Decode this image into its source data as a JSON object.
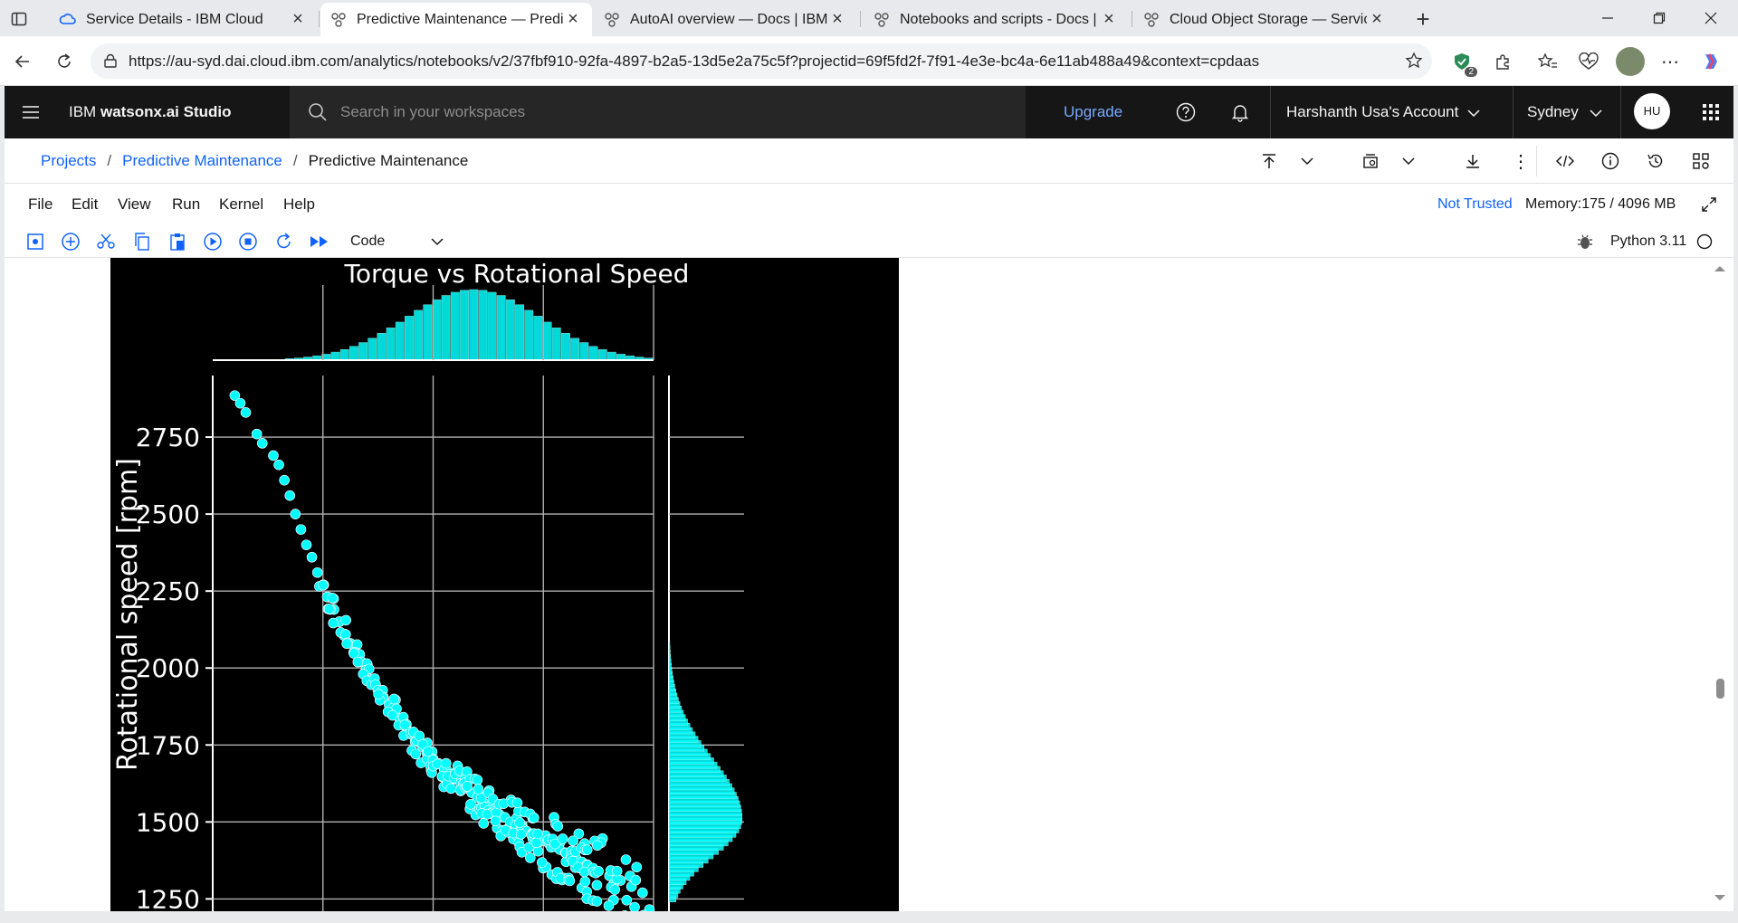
{
  "browser": {
    "tabs": [
      {
        "title": "Service Details - IBM Cloud",
        "active": false,
        "icon": "ibm-cloud-icon"
      },
      {
        "title": "Predictive Maintenance — Predict",
        "active": true,
        "icon": "watsonx-icon"
      },
      {
        "title": "AutoAI overview — Docs | IBM wa",
        "active": false,
        "icon": "watsonx-icon"
      },
      {
        "title": "Notebooks and scripts - Docs | IB",
        "active": false,
        "icon": "watsonx-icon"
      },
      {
        "title": "Cloud Object Storage — Services",
        "active": false,
        "icon": "watsonx-icon"
      }
    ],
    "url": "https://au-syd.dai.cloud.ibm.com/analytics/notebooks/v2/37fbf910-92fa-4897-b2a5-13d5e2a75c5f?projectid=69f5fd2f-7f91-4e3e-bc4a-6e11ab488a49&context=cpdaas",
    "extension_badge": "2"
  },
  "app": {
    "brand_prefix": "IBM",
    "brand_name": "watsonx.ai Studio",
    "search_placeholder": "Search in your workspaces",
    "upgrade_label": "Upgrade",
    "account_label": "Harshanth Usa's Account",
    "region_label": "Sydney",
    "avatar_initials": "HU"
  },
  "breadcrumb": {
    "items": [
      "Projects",
      "Predictive Maintenance"
    ],
    "current": "Predictive Maintenance"
  },
  "notebook": {
    "menu": [
      "File",
      "Edit",
      "View",
      "Run",
      "Kernel",
      "Help"
    ],
    "trust_status": "Not Trusted",
    "memory": "Memory:175 / 4096 MB",
    "cell_type": "Code",
    "kernel": "Python 3.11"
  },
  "chart_data": {
    "type": "scatter",
    "title": "Torque vs Rotational Speed",
    "ylabel": "Rotational speed [rpm]",
    "xlabel": "",
    "yticks": [
      "2750",
      "2500",
      "2250",
      "2000",
      "1750",
      "1500",
      "1250"
    ],
    "ylim": [
      1210,
      2950
    ],
    "xlim": [
      0,
      80
    ],
    "color": "#00ffff",
    "marginal_x": "histogram",
    "marginal_y": "histogram",
    "relationship": "rotational speed decreases as torque increases",
    "points": [
      [
        4,
        2885
      ],
      [
        5,
        2860
      ],
      [
        6,
        2830
      ],
      [
        8,
        2760
      ],
      [
        9,
        2730
      ],
      [
        11,
        2690
      ],
      [
        12,
        2660
      ],
      [
        13,
        2610
      ],
      [
        14,
        2560
      ],
      [
        15,
        2500
      ],
      [
        16,
        2450
      ],
      [
        17,
        2400
      ],
      [
        18,
        2360
      ],
      [
        19,
        2310
      ],
      [
        20,
        2270
      ],
      [
        21,
        2230
      ],
      [
        22,
        2190
      ],
      [
        23,
        2150
      ],
      [
        24,
        2110
      ],
      [
        25,
        2080
      ],
      [
        26,
        2050
      ],
      [
        27,
        2020
      ],
      [
        28,
        1990
      ],
      [
        29,
        1960
      ],
      [
        30,
        1930
      ],
      [
        31,
        1905
      ],
      [
        32,
        1880
      ],
      [
        33,
        1855
      ],
      [
        34,
        1830
      ],
      [
        35,
        1810
      ],
      [
        36,
        1785
      ],
      [
        37,
        1765
      ],
      [
        38,
        1745
      ],
      [
        39,
        1725
      ],
      [
        40,
        1705
      ],
      [
        41,
        1690
      ],
      [
        42,
        1670
      ],
      [
        43,
        1655
      ],
      [
        44,
        1640
      ],
      [
        45,
        1625
      ],
      [
        46,
        1610
      ],
      [
        47,
        1595
      ],
      [
        48,
        1580
      ],
      [
        49,
        1565
      ],
      [
        50,
        1550
      ],
      [
        51,
        1540
      ],
      [
        52,
        1525
      ],
      [
        53,
        1515
      ],
      [
        54,
        1500
      ],
      [
        55,
        1490
      ],
      [
        56,
        1480
      ],
      [
        57,
        1470
      ],
      [
        58,
        1460
      ],
      [
        59,
        1450
      ],
      [
        60,
        1440
      ],
      [
        61,
        1430
      ],
      [
        62,
        1420
      ],
      [
        63,
        1410
      ],
      [
        64,
        1400
      ],
      [
        65,
        1390
      ],
      [
        66,
        1380
      ],
      [
        67,
        1370
      ],
      [
        68,
        1360
      ],
      [
        69,
        1350
      ],
      [
        70,
        1340
      ],
      [
        72,
        1325
      ],
      [
        74,
        1310
      ],
      [
        76,
        1290
      ],
      [
        78,
        1270
      ]
    ]
  }
}
